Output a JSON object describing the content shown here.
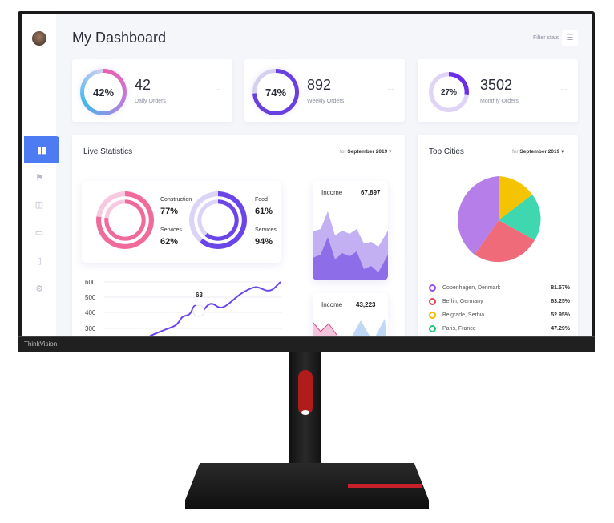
{
  "header": {
    "title": "My Dashboard",
    "filter_label": "Filter stats",
    "filter_icon": "filter-layout-icon"
  },
  "sidebar": {
    "items": [
      {
        "icon": "bar-chart-icon",
        "active": true
      },
      {
        "icon": "signpost-icon"
      },
      {
        "icon": "basket-icon"
      },
      {
        "icon": "chat-icon"
      },
      {
        "icon": "document-icon"
      },
      {
        "icon": "settings-icon"
      }
    ]
  },
  "stats": [
    {
      "percent": "42%",
      "value": "42",
      "label": "Daily Orders",
      "more": "..."
    },
    {
      "percent": "74%",
      "value": "892",
      "label": "Weekly Orders",
      "more": "..."
    },
    {
      "percent": "27%",
      "value": "3502",
      "label": "Monthly Orders",
      "more": "..."
    }
  ],
  "live": {
    "title": "Live Statistics",
    "period_prefix": "for",
    "period": "September 2019",
    "donut1": {
      "a_label": "Construction",
      "a_value": "77%",
      "b_label": "Services",
      "b_value": "62%"
    },
    "donut2": {
      "a_label": "Food",
      "a_value": "61%",
      "b_label": "Services",
      "b_value": "94%"
    },
    "line": {
      "y_ticks": [
        "600",
        "500",
        "400",
        "300"
      ],
      "marker": "63"
    },
    "income1": {
      "label": "Income",
      "value": "67,897"
    },
    "income2": {
      "label": "Income",
      "value": "43,223"
    }
  },
  "cities": {
    "title": "Top Cities",
    "period_prefix": "for",
    "period": "September 2019",
    "items": [
      {
        "name": "Copenhagen, Denmark",
        "value": "81.57%",
        "color": "#9b4de8"
      },
      {
        "name": "Berlin, Germany",
        "value": "63.25%",
        "color": "#e8464f"
      },
      {
        "name": "Belgrade, Serbia",
        "value": "52.95%",
        "color": "#f5b800"
      },
      {
        "name": "Paris, France",
        "value": "47.29%",
        "color": "#22c47a"
      }
    ]
  },
  "monitor": {
    "brand": "ThinkVision"
  }
}
